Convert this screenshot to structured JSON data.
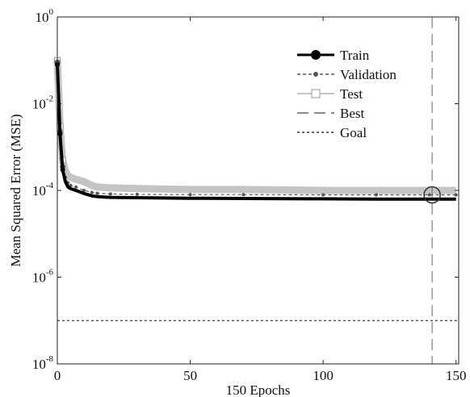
{
  "chart_data": {
    "type": "line",
    "title": "",
    "xlabel": "150 Epochs",
    "ylabel": "Mean Squared Error (MSE)",
    "xlim": [
      0,
      151
    ],
    "ylim": [
      1e-08,
      1
    ],
    "yscale": "log",
    "grid": false,
    "legend_position": "top-right",
    "x_ticks": [
      0,
      50,
      100,
      150
    ],
    "y_ticks": [
      {
        "value": 1e-08,
        "base": "10",
        "exp": "-8"
      },
      {
        "value": 1e-06,
        "base": "10",
        "exp": "-6"
      },
      {
        "value": 0.0001,
        "base": "10",
        "exp": "-4"
      },
      {
        "value": 0.01,
        "base": "10",
        "exp": "-2"
      },
      {
        "value": 1,
        "base": "10",
        "exp": "0"
      }
    ],
    "series": [
      {
        "name": "Train",
        "color": "#000000",
        "x": [
          0,
          1,
          2,
          3,
          4,
          5,
          7,
          10,
          13,
          15,
          20,
          30,
          50,
          70,
          100,
          120,
          140,
          150
        ],
        "values": [
          0.08,
          0.002,
          0.0003,
          0.00016,
          0.00012,
          0.00011,
          0.0001,
          8.5e-05,
          7.5e-05,
          7.2e-05,
          6.9e-05,
          6.8e-05,
          6.6e-05,
          6.5e-05,
          6.4e-05,
          6.3e-05,
          6.3e-05,
          6.3e-05
        ]
      },
      {
        "name": "Validation",
        "color": "#555555",
        "x": [
          0,
          1,
          2,
          3,
          4,
          5,
          7,
          10,
          13,
          15,
          20,
          30,
          50,
          70,
          100,
          120,
          140,
          150
        ],
        "values": [
          0.09,
          0.0022,
          0.00035,
          0.0002,
          0.00015,
          0.00013,
          0.00012,
          0.0001,
          9e-05,
          8.6e-05,
          8.3e-05,
          8.1e-05,
          8e-05,
          8e-05,
          7.9e-05,
          7.9e-05,
          7.9e-05,
          7.9e-05
        ]
      },
      {
        "name": "Test",
        "color": "#c4c4c4",
        "x": [
          0,
          1,
          2,
          3,
          4,
          5,
          7,
          10,
          13,
          15,
          20,
          30,
          50,
          70,
          100,
          120,
          140,
          150
        ],
        "values": [
          0.1,
          0.003,
          0.0005,
          0.00028,
          0.00022,
          0.0002,
          0.00018,
          0.00016,
          0.00013,
          0.00012,
          0.000115,
          0.00011,
          0.000105,
          0.000105,
          0.0001,
          0.0001,
          0.0001,
          0.0001
        ]
      }
    ],
    "best": {
      "name": "Best",
      "epoch": 141,
      "value": 7.9e-05
    },
    "goal": {
      "name": "Goal",
      "value": 1e-07
    },
    "legend": [
      {
        "label": "Train",
        "style": "train"
      },
      {
        "label": "Validation",
        "style": "validation"
      },
      {
        "label": "Test",
        "style": "test"
      },
      {
        "label": "Best",
        "style": "best"
      },
      {
        "label": "Goal",
        "style": "goal"
      }
    ]
  }
}
